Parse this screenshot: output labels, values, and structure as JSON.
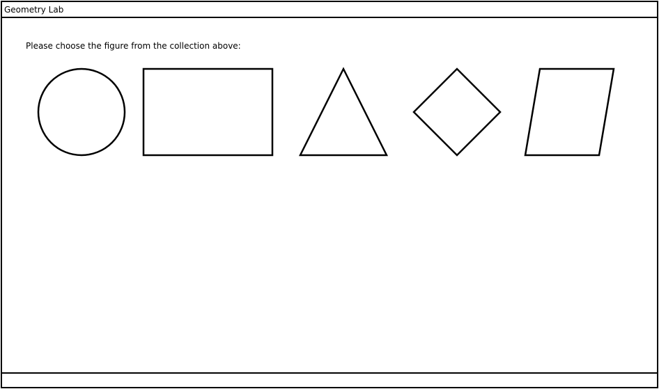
{
  "window": {
    "title": "Geometry Lab"
  },
  "main": {
    "prompt": "Please choose the figure from the collection above:",
    "shapes": [
      {
        "name": "circle-shape",
        "kind": "circle"
      },
      {
        "name": "rectangle-shape",
        "kind": "rectangle"
      },
      {
        "name": "triangle-shape",
        "kind": "triangle"
      },
      {
        "name": "diamond-shape",
        "kind": "diamond"
      },
      {
        "name": "parallelogram-shape",
        "kind": "parallelogram"
      }
    ]
  },
  "colors": {
    "stroke": "#000000",
    "background": "#ffffff"
  }
}
